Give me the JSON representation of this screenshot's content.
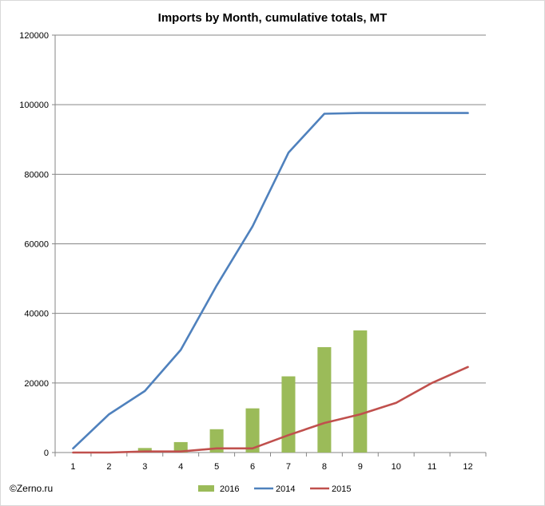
{
  "chart_data": {
    "type": "bar",
    "title": "Imports by Month, cumulative totals, MT",
    "xlabel": "",
    "ylabel": "",
    "categories": [
      "1",
      "2",
      "3",
      "4",
      "5",
      "6",
      "7",
      "8",
      "9",
      "10",
      "11",
      "12"
    ],
    "ylim": [
      0,
      120000
    ],
    "yticks": [
      "0",
      "20000",
      "40000",
      "60000",
      "80000",
      "100000",
      "120000"
    ],
    "ytick_values": [
      0,
      20000,
      40000,
      60000,
      80000,
      100000,
      120000
    ],
    "grid": true,
    "legend_position": "bottom",
    "series": [
      {
        "name": "2016",
        "kind": "bar",
        "color": "#9BBB59",
        "values": [
          0,
          0,
          1300,
          3000,
          6700,
          12700,
          21900,
          30300,
          35100,
          null,
          null,
          null
        ]
      },
      {
        "name": "2014",
        "kind": "line",
        "color": "#4F81BD",
        "values": [
          1200,
          11000,
          17700,
          29500,
          48000,
          65000,
          86200,
          97400,
          97600,
          97600,
          97600,
          97600
        ]
      },
      {
        "name": "2015",
        "kind": "line",
        "color": "#C0504D",
        "values": [
          0,
          0,
          300,
          300,
          1200,
          1200,
          5000,
          8500,
          11000,
          14300,
          20000,
          24600
        ]
      }
    ]
  },
  "copyright": "©Zerno.ru"
}
